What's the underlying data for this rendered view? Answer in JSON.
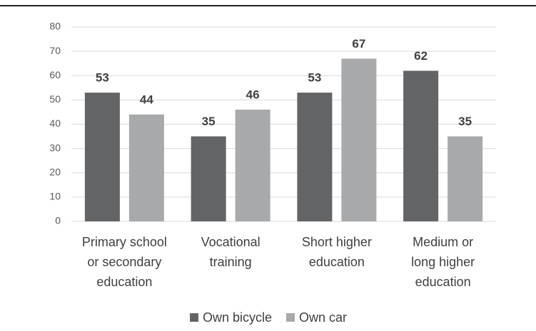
{
  "chart_data": {
    "type": "bar",
    "categories": [
      "Primary school\nor secondary\neducation",
      "Vocational\ntraining",
      "Short higher\neducation",
      "Medium or\nlong higher\neducation"
    ],
    "series": [
      {
        "name": "Own bicycle",
        "color": "#636466",
        "values": [
          53,
          35,
          53,
          62
        ]
      },
      {
        "name": "Own car",
        "color": "#a8a9ab",
        "values": [
          44,
          46,
          67,
          35
        ]
      }
    ],
    "ylim": [
      0,
      80
    ],
    "yticks": [
      0,
      10,
      20,
      30,
      40,
      50,
      60,
      70,
      80
    ],
    "grid": true,
    "legend": "bottom"
  }
}
